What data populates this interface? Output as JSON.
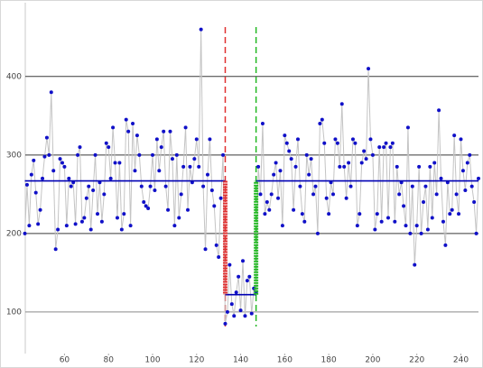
{
  "chart_data": {
    "type": "line",
    "x": [
      42,
      43,
      44,
      45,
      46,
      47,
      48,
      49,
      50,
      51,
      52,
      53,
      54,
      55,
      56,
      57,
      58,
      59,
      60,
      61,
      62,
      63,
      64,
      65,
      66,
      67,
      68,
      69,
      70,
      71,
      72,
      73,
      74,
      75,
      76,
      77,
      78,
      79,
      80,
      81,
      82,
      83,
      84,
      85,
      86,
      87,
      88,
      89,
      90,
      91,
      92,
      93,
      94,
      95,
      96,
      97,
      98,
      99,
      100,
      101,
      102,
      103,
      104,
      105,
      106,
      107,
      108,
      109,
      110,
      111,
      112,
      113,
      114,
      115,
      116,
      117,
      118,
      119,
      120,
      121,
      122,
      123,
      124,
      125,
      126,
      127,
      128,
      129,
      130,
      131,
      132,
      133,
      134,
      135,
      136,
      137,
      138,
      139,
      140,
      141,
      142,
      143,
      144,
      145,
      146,
      147,
      148,
      149,
      150,
      151,
      152,
      153,
      154,
      155,
      156,
      157,
      158,
      159,
      160,
      161,
      162,
      163,
      164,
      165,
      166,
      167,
      168,
      169,
      170,
      171,
      172,
      173,
      174,
      175,
      176,
      177,
      178,
      179,
      180,
      181,
      182,
      183,
      184,
      185,
      186,
      187,
      188,
      189,
      190,
      191,
      192,
      193,
      194,
      195,
      196,
      197,
      198,
      199,
      200,
      201,
      202,
      203,
      204,
      205,
      206,
      207,
      208,
      209,
      210,
      211,
      212,
      213,
      214,
      215,
      216,
      217,
      218,
      219,
      220,
      221,
      222,
      223,
      224,
      225,
      226,
      227,
      228,
      229,
      230,
      231,
      232,
      233,
      234,
      235,
      236,
      237,
      238,
      239,
      240,
      241,
      242,
      243,
      244,
      245,
      246,
      247,
      248
    ],
    "series": [
      {
        "color": "#1010c8",
        "line_color": "#c4c4c4",
        "values": [
          200,
          262,
          210,
          275,
          293,
          252,
          212,
          230,
          270,
          298,
          322,
          300,
          380,
          280,
          180,
          205,
          295,
          290,
          285,
          210,
          270,
          260,
          265,
          212,
          300,
          310,
          215,
          220,
          245,
          260,
          205,
          255,
          300,
          225,
          265,
          215,
          250,
          315,
          310,
          270,
          335,
          290,
          220,
          290,
          205,
          225,
          345,
          330,
          210,
          340,
          280,
          325,
          300,
          260,
          240,
          235,
          232,
          260,
          300,
          255,
          320,
          280,
          310,
          330,
          260,
          230,
          330,
          295,
          210,
          300,
          220,
          250,
          285,
          335,
          230,
          285,
          265,
          295,
          320,
          285,
          460,
          260,
          180,
          275,
          320,
          255,
          235,
          185,
          170,
          245,
          300,
          85,
          100,
          160,
          110,
          95,
          125,
          145,
          102,
          165,
          95,
          140,
          145,
          98,
          130,
          125,
          285,
          250,
          340,
          225,
          240,
          230,
          250,
          275,
          290,
          245,
          280,
          210,
          325,
          315,
          305,
          295,
          230,
          285,
          320,
          260,
          225,
          215,
          300,
          275,
          295,
          250,
          260,
          200,
          340,
          345,
          315,
          245,
          225,
          265,
          250,
          320,
          315,
          285,
          365,
          285,
          245,
          290,
          260,
          320,
          315,
          210,
          225,
          290,
          305,
          295,
          410,
          320,
          300,
          205,
          225,
          310,
          215,
          310,
          315,
          220,
          310,
          315,
          215,
          285,
          250,
          265,
          235,
          210,
          335,
          200,
          260,
          160,
          210,
          285,
          200,
          240,
          260,
          205,
          285,
          220,
          290,
          250,
          357,
          270,
          215,
          185,
          265,
          225,
          230,
          325,
          250,
          225,
          320,
          280,
          255,
          290,
          300,
          260,
          240,
          200,
          270
        ]
      }
    ],
    "mean_lines": [
      {
        "color": "#0000b4",
        "x": [
          42,
          133
        ],
        "values": [
          267,
          267
        ]
      },
      {
        "color": "#0000b4",
        "x": [
          133,
          147
        ],
        "values": [
          122,
          122
        ]
      },
      {
        "color": "#0000b4",
        "x": [
          147,
          248
        ],
        "values": [
          267,
          267
        ]
      }
    ],
    "change_points": [
      {
        "x": 133,
        "color": "#e03030",
        "from": 267,
        "to": 122
      },
      {
        "x": 147,
        "color": "#22b822",
        "from": 122,
        "to": 267
      }
    ],
    "xlim": [
      42.2,
      248
    ],
    "ylim": [
      47,
      494
    ],
    "xticks": [
      60,
      80,
      100,
      120,
      140,
      160,
      180,
      200,
      220,
      240
    ],
    "yticks": [
      100,
      200,
      300,
      400
    ],
    "grid": true
  }
}
